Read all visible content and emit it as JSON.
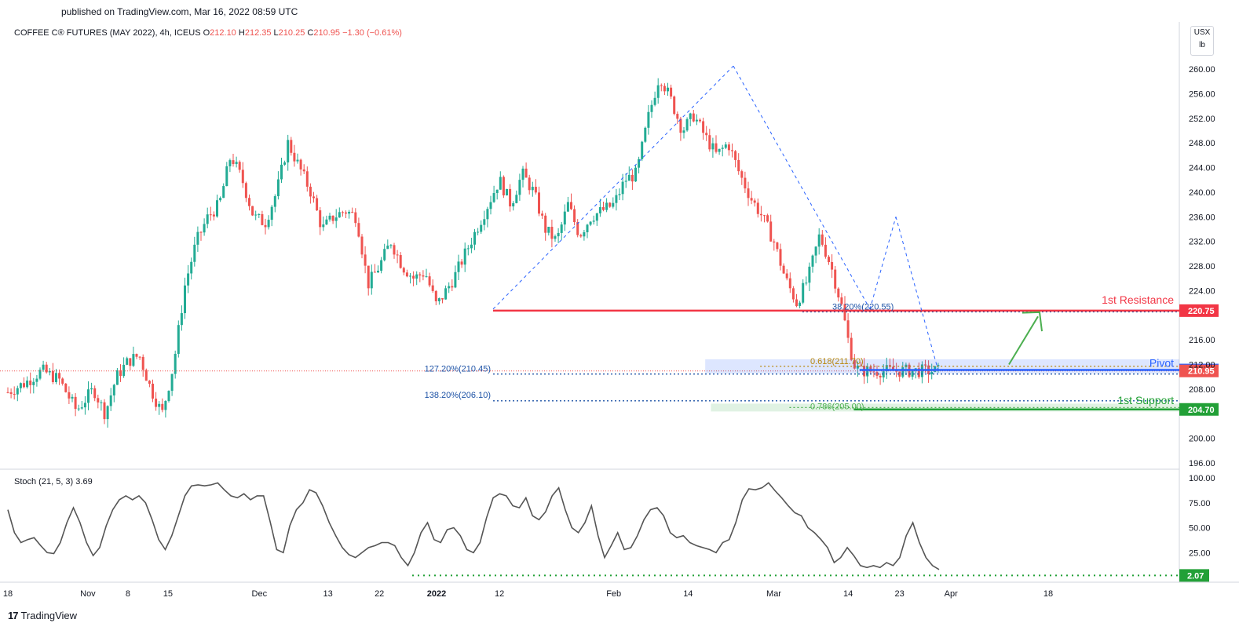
{
  "published": "published on TradingView.com, Mar 16, 2022 08:59 UTC",
  "header": {
    "symbol": "COFFEE C® FUTURES (MAY 2022), 4h, ICEUS",
    "o_label": "O",
    "o": "212.10",
    "h_label": "H",
    "h": "212.35",
    "l_label": "L",
    "l": "210.25",
    "c_label": "C",
    "c": "210.95",
    "change": "−1.30 (−0.61%)"
  },
  "unit": {
    "line1": "USX",
    "line2": "lb"
  },
  "brand": {
    "logo": "17",
    "name": "TradingView"
  },
  "colors": {
    "up": "#26a69a",
    "up_candle": "#22ab94",
    "down": "#ef5350",
    "resistance": "#f23645",
    "pivot": "#2962ff",
    "support": "#22a037",
    "fib": "#1e53a6",
    "stoch_line": "#555555"
  },
  "annotations": {
    "resistance_label": "1st Resistance",
    "pivot_label": "Pivot",
    "support_label": "1st Support",
    "fib_38": "38.20%(220.55)",
    "fib_618": "0.618(211.70)",
    "fib_786": "0.786(205.00)",
    "ext_127": "127.20%(210.45)",
    "ext_138": "138.20%(206.10)"
  },
  "stoch": {
    "label": "Stoch (21, 5, 3)",
    "value": "3.69",
    "level_badge": "2.07"
  },
  "chart_data": [
    {
      "type": "candlestick",
      "title": "COFFEE C® FUTURES (MAY 2022), 4h, ICEUS",
      "ylim": [
        194,
        262
      ],
      "y_ticks": [
        "260.00",
        "256.00",
        "252.00",
        "248.00",
        "244.00",
        "240.00",
        "236.00",
        "232.00",
        "228.00",
        "224.00",
        "216.00",
        "212.00",
        "208.00",
        "200.00",
        "196.00"
      ],
      "x_ticks": [
        "18",
        "Nov",
        "8",
        "15",
        "Dec",
        "13",
        "22",
        "2022",
        "12",
        "Feb",
        "14",
        "Mar",
        "14",
        "23",
        "Apr",
        "18"
      ],
      "x_tick_dates": [
        "2021-10-18",
        "2021-11-01",
        "2021-11-08",
        "2021-11-15",
        "2021-12-01",
        "2021-12-13",
        "2021-12-22",
        "2022-01-01",
        "2022-01-12",
        "2022-02-01",
        "2022-02-14",
        "2022-03-01",
        "2022-03-14",
        "2022-03-23",
        "2022-04-01",
        "2022-04-18"
      ],
      "price_path": [
        {
          "date": "2021-10-18",
          "close": 207.5
        },
        {
          "date": "2021-10-21",
          "close": 209.0
        },
        {
          "date": "2021-10-24",
          "close": 211.0
        },
        {
          "date": "2021-10-27",
          "close": 209.5
        },
        {
          "date": "2021-10-30",
          "close": 204.5
        },
        {
          "date": "2021-11-02",
          "close": 208.0
        },
        {
          "date": "2021-11-04",
          "close": 204.0
        },
        {
          "date": "2021-11-06",
          "close": 210.0
        },
        {
          "date": "2021-11-08",
          "close": 212.5
        },
        {
          "date": "2021-11-10",
          "close": 213.5
        },
        {
          "date": "2021-11-12",
          "close": 208.0
        },
        {
          "date": "2021-11-14",
          "close": 204.0
        },
        {
          "date": "2021-11-16",
          "close": 212.0
        },
        {
          "date": "2021-11-18",
          "close": 225.0
        },
        {
          "date": "2021-11-20",
          "close": 232.0
        },
        {
          "date": "2021-11-22",
          "close": 236.0
        },
        {
          "date": "2021-11-24",
          "close": 238.0
        },
        {
          "date": "2021-11-26",
          "close": 246.0
        },
        {
          "date": "2021-11-28",
          "close": 242.0
        },
        {
          "date": "2021-11-30",
          "close": 236.0
        },
        {
          "date": "2021-12-02",
          "close": 235.0
        },
        {
          "date": "2021-12-04",
          "close": 240.0
        },
        {
          "date": "2021-12-06",
          "close": 248.0
        },
        {
          "date": "2021-12-08",
          "close": 244.0
        },
        {
          "date": "2021-12-10",
          "close": 240.0
        },
        {
          "date": "2021-12-12",
          "close": 234.0
        },
        {
          "date": "2021-12-14",
          "close": 236.0
        },
        {
          "date": "2021-12-16",
          "close": 237.0
        },
        {
          "date": "2021-12-18",
          "close": 236.0
        },
        {
          "date": "2021-12-20",
          "close": 225.0
        },
        {
          "date": "2021-12-22",
          "close": 228.0
        },
        {
          "date": "2021-12-24",
          "close": 232.0
        },
        {
          "date": "2021-12-26",
          "close": 228.0
        },
        {
          "date": "2021-12-28",
          "close": 226.0
        },
        {
          "date": "2021-12-30",
          "close": 227.0
        },
        {
          "date": "2022-01-01",
          "close": 221.5
        },
        {
          "date": "2022-01-04",
          "close": 226.0
        },
        {
          "date": "2022-01-06",
          "close": 230.0
        },
        {
          "date": "2022-01-08",
          "close": 234.0
        },
        {
          "date": "2022-01-10",
          "close": 238.0
        },
        {
          "date": "2022-01-12",
          "close": 242.0
        },
        {
          "date": "2022-01-14",
          "close": 238.0
        },
        {
          "date": "2022-01-16",
          "close": 243.0
        },
        {
          "date": "2022-01-18",
          "close": 240.0
        },
        {
          "date": "2022-01-20",
          "close": 234.0
        },
        {
          "date": "2022-01-22",
          "close": 232.0
        },
        {
          "date": "2022-01-24",
          "close": 238.0
        },
        {
          "date": "2022-01-26",
          "close": 233.0
        },
        {
          "date": "2022-01-28",
          "close": 236.0
        },
        {
          "date": "2022-02-01",
          "close": 238.0
        },
        {
          "date": "2022-02-03",
          "close": 242.0
        },
        {
          "date": "2022-02-05",
          "close": 243.0
        },
        {
          "date": "2022-02-07",
          "close": 252.0
        },
        {
          "date": "2022-02-09",
          "close": 259.0
        },
        {
          "date": "2022-02-11",
          "close": 255.0
        },
        {
          "date": "2022-02-13",
          "close": 250.0
        },
        {
          "date": "2022-02-15",
          "close": 252.5
        },
        {
          "date": "2022-02-17",
          "close": 249.0
        },
        {
          "date": "2022-02-19",
          "close": 246.0
        },
        {
          "date": "2022-02-21",
          "close": 248.0
        },
        {
          "date": "2022-02-23",
          "close": 243.0
        },
        {
          "date": "2022-02-25",
          "close": 239.0
        },
        {
          "date": "2022-02-27",
          "close": 236.0
        },
        {
          "date": "2022-03-01",
          "close": 232.0
        },
        {
          "date": "2022-03-03",
          "close": 226.0
        },
        {
          "date": "2022-03-05",
          "close": 222.0
        },
        {
          "date": "2022-03-07",
          "close": 226.0
        },
        {
          "date": "2022-03-09",
          "close": 233.0
        },
        {
          "date": "2022-03-11",
          "close": 228.0
        },
        {
          "date": "2022-03-13",
          "close": 221.0
        },
        {
          "date": "2022-03-14",
          "close": 216.0
        },
        {
          "date": "2022-03-15",
          "close": 212.0
        },
        {
          "date": "2022-03-16",
          "close": 210.95
        }
      ],
      "levels": [
        {
          "name": "1st Resistance",
          "value": 220.75
        },
        {
          "name": "Pivot",
          "value": 211.1
        },
        {
          "name": "1st Support",
          "value": 204.7
        },
        {
          "name": "38.20%",
          "value": 220.55
        },
        {
          "name": "0.618",
          "value": 211.7
        },
        {
          "name": "0.786",
          "value": 205.0
        },
        {
          "name": "127.20%",
          "value": 210.45
        },
        {
          "name": "138.20%",
          "value": 206.1
        }
      ],
      "last_price": 210.95,
      "last_price_badge": "210.95"
    },
    {
      "type": "line",
      "title": "Stoch (21, 5, 3)",
      "ylim": [
        0,
        100
      ],
      "y_ticks": [
        "100.00",
        "75.00",
        "50.00",
        "25.00"
      ],
      "values": [
        68,
        45,
        35,
        38,
        40,
        32,
        25,
        24,
        35,
        55,
        70,
        55,
        35,
        22,
        30,
        52,
        68,
        78,
        82,
        78,
        82,
        75,
        58,
        38,
        28,
        42,
        62,
        82,
        92,
        93,
        92,
        93,
        95,
        88,
        82,
        80,
        84,
        78,
        82,
        82,
        56,
        28,
        25,
        52,
        68,
        75,
        88,
        85,
        72,
        55,
        42,
        30,
        23,
        20,
        25,
        30,
        32,
        35,
        35,
        32,
        20,
        12,
        25,
        45,
        55,
        38,
        35,
        48,
        50,
        42,
        28,
        25,
        35,
        60,
        80,
        84,
        82,
        72,
        70,
        80,
        62,
        58,
        66,
        82,
        90,
        68,
        50,
        45,
        55,
        72,
        42,
        20,
        32,
        45,
        28,
        30,
        42,
        58,
        68,
        70,
        62,
        45,
        40,
        42,
        35,
        32,
        30,
        28,
        25,
        35,
        38,
        55,
        78,
        89,
        88,
        90,
        95,
        87,
        80,
        72,
        65,
        62,
        50,
        45,
        38,
        30,
        15,
        20,
        30,
        22,
        12,
        10,
        12,
        10,
        15,
        12,
        20,
        42,
        55,
        35,
        20,
        12,
        8
      ]
    }
  ]
}
